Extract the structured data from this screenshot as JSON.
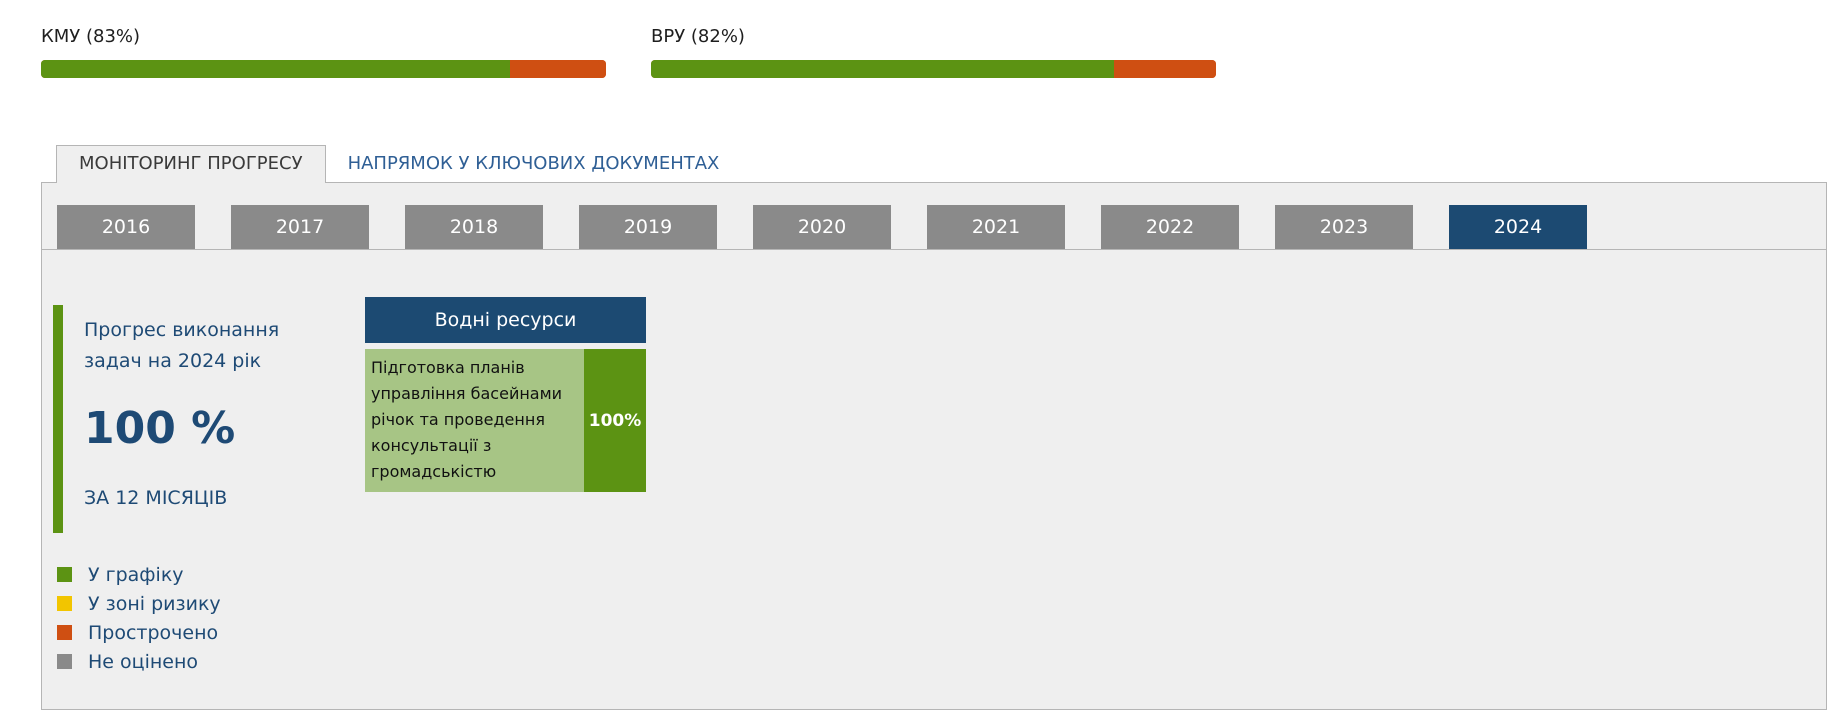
{
  "header": {
    "kmu": {
      "label": "КМУ (83%)",
      "progress": 0.83
    },
    "vru": {
      "label": "ВРУ (82%)",
      "progress": 0.82
    },
    "colors": {
      "on_track": "#5c9313",
      "overdue": "#cf4f12"
    }
  },
  "tabs": [
    {
      "label": "МОНІТОРИНГ ПРОГРЕСУ",
      "active": true
    },
    {
      "label": "НАПРЯМОК У КЛЮЧОВИХ ДОКУМЕНТАХ",
      "active": false
    }
  ],
  "years": [
    "2016",
    "2017",
    "2018",
    "2019",
    "2020",
    "2021",
    "2022",
    "2023",
    "2024"
  ],
  "selected_year": "2024",
  "summary": {
    "title": "Прогрес виконання задач на 2024 рік",
    "value": "100 %",
    "period": "ЗА 12 МІСЯЦІВ"
  },
  "legend": [
    {
      "label": "У графіку",
      "color": "#5c9313"
    },
    {
      "label": "У зоні ризику",
      "color": "#f2c500"
    },
    {
      "label": "Прострочено",
      "color": "#cf4f12"
    },
    {
      "label": "Не оцінено",
      "color": "#8a8a8a"
    }
  ],
  "card": {
    "title": "Водні ресурси",
    "task": "Підготовка планів управління басейнами річок та проведення консультації з громадськістю",
    "percent": "100%"
  }
}
